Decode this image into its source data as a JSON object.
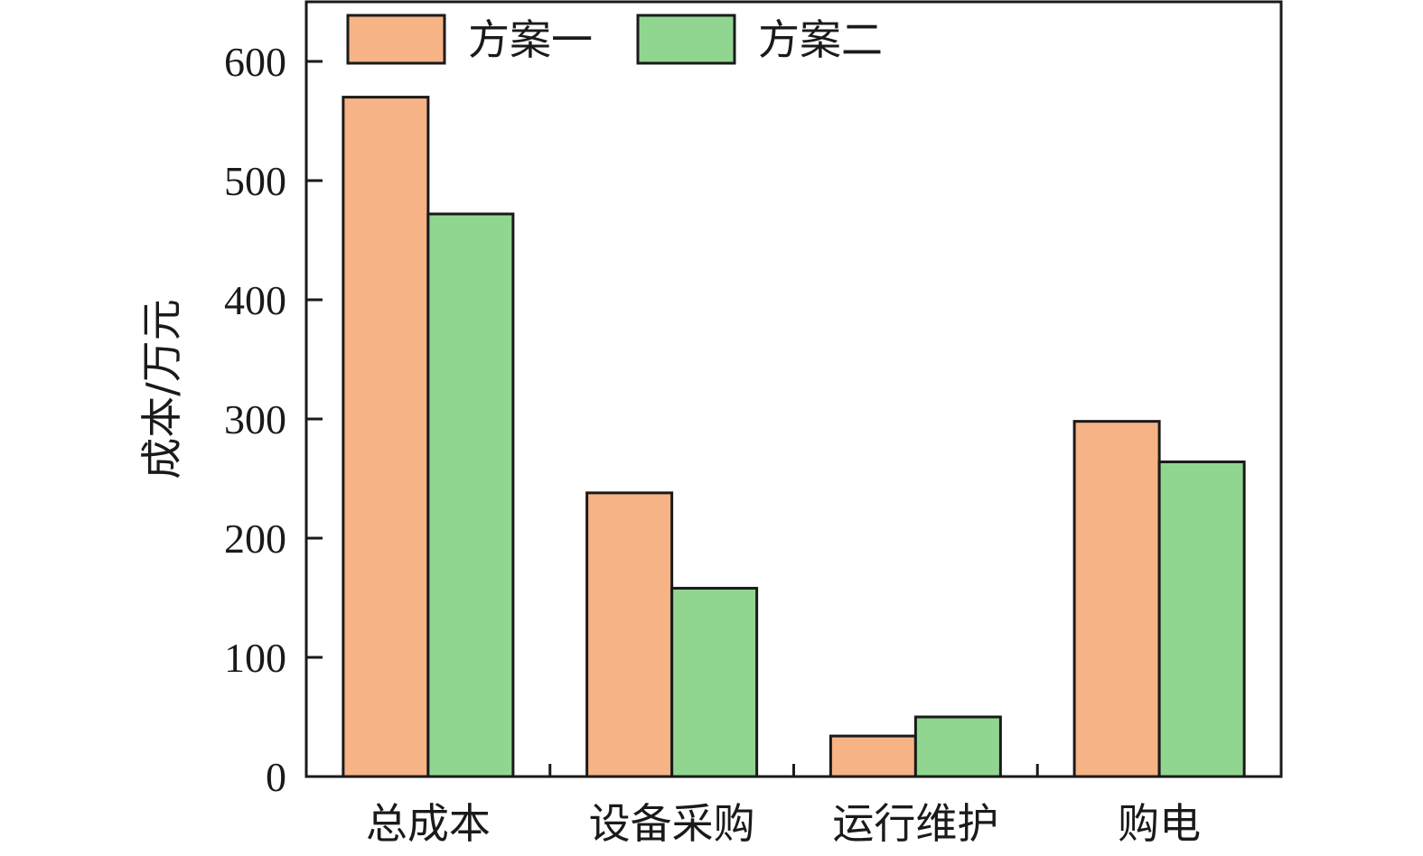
{
  "chart_data": {
    "type": "bar",
    "title": "",
    "xlabel": "",
    "ylabel": "成本/万元",
    "categories": [
      "总成本",
      "设备采购",
      "运行维护",
      "购电"
    ],
    "series": [
      {
        "name": "方案一",
        "color": "#f6b385",
        "values": [
          570,
          238,
          34,
          298
        ]
      },
      {
        "name": "方案二",
        "color": "#90d690",
        "values": [
          472,
          158,
          50,
          264
        ]
      }
    ],
    "yticks": [
      0,
      100,
      200,
      300,
      400,
      500,
      600
    ],
    "ylim": [
      0,
      650
    ],
    "grid": false,
    "legend_position": "top-left",
    "bar_edge_color": "#1a1a1a"
  }
}
